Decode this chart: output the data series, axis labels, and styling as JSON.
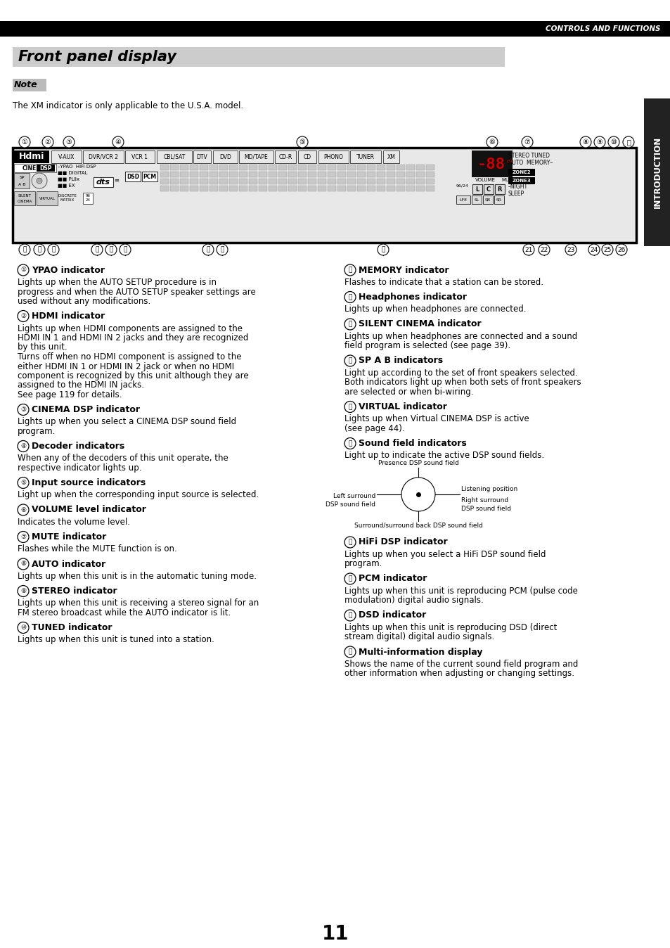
{
  "page_title": "Front panel display",
  "header_text": "CONTROLS AND FUNCTIONS",
  "side_tab_text": "INTRODUCTION",
  "note_label": "Note",
  "note_text": "The XM indicator is only applicable to the U.S.A. model.",
  "page_number": "11",
  "background_color": "#ffffff",
  "header_bg": "#000000",
  "title_bg": "#cccccc",
  "note_bg": "#bbbbbb",
  "side_tab_bg": "#222222",
  "section_items_left": [
    {
      "num": "①",
      "title": "YPAO indicator",
      "body": "Lights up when the AUTO SETUP procedure is in\nprogress and when the AUTO SETUP speaker settings are\nused without any modifications."
    },
    {
      "num": "②",
      "title": "HDMI indicator",
      "body": "Lights up when HDMI components are assigned to the\nHDMI IN 1 and HDMI IN 2 jacks and they are recognized\nby this unit.\nTurns off when no HDMI component is assigned to the\neither HDMI IN 1 or HDMI IN 2 jack or when no HDMI\ncomponent is recognized by this unit although they are\nassigned to the HDMI IN jacks.\nSee page 119 for details."
    },
    {
      "num": "③",
      "title": "CINEMA DSP indicator",
      "body": "Lights up when you select a CINEMA DSP sound field\nprogram."
    },
    {
      "num": "④",
      "title": "Decoder indicators",
      "body": "When any of the decoders of this unit operate, the\nrespective indicator lights up."
    },
    {
      "num": "⑤",
      "title": "Input source indicators",
      "body": "Light up when the corresponding input source is selected."
    },
    {
      "num": "⑥",
      "title": "VOLUME level indicator",
      "body": "Indicates the volume level."
    },
    {
      "num": "⑦",
      "title": "MUTE indicator",
      "body": "Flashes while the MUTE function is on."
    },
    {
      "num": "⑧",
      "title": "AUTO indicator",
      "body": "Lights up when this unit is in the automatic tuning mode."
    },
    {
      "num": "⑨",
      "title": "STEREO indicator",
      "body": "Lights up when this unit is receiving a stereo signal for an\nFM stereo broadcast while the AUTO indicator is lit."
    },
    {
      "num": "⑩",
      "title": "TUNED indicator",
      "body": "Lights up when this unit is tuned into a station."
    }
  ],
  "section_items_right": [
    {
      "num": "⑪",
      "title": "MEMORY indicator",
      "body": "Flashes to indicate that a station can be stored."
    },
    {
      "num": "⑫",
      "title": "Headphones indicator",
      "body": "Lights up when headphones are connected."
    },
    {
      "num": "⑬",
      "title": "SILENT CINEMA indicator",
      "body": "Lights up when headphones are connected and a sound\nfield program is selected (see page 39)."
    },
    {
      "num": "⑭",
      "title": "SP A B indicators",
      "body": "Light up according to the set of front speakers selected.\nBoth indicators light up when both sets of front speakers\nare selected or when bi-wiring."
    },
    {
      "num": "⑮",
      "title": "VIRTUAL indicator",
      "body": "Lights up when Virtual CINEMA DSP is active\n(see page 44)."
    },
    {
      "num": "⑯",
      "title": "Sound field indicators",
      "body": "Light up to indicate the active DSP sound fields."
    },
    {
      "num": "⑰",
      "title": "HiFi DSP indicator",
      "body": "Lights up when you select a HiFi DSP sound field\nprogram."
    },
    {
      "num": "⑱",
      "title": "PCM indicator",
      "body": "Lights up when this unit is reproducing PCM (pulse code\nmodulation) digital audio signals."
    },
    {
      "num": "⑲",
      "title": "DSD indicator",
      "body": "Lights up when this unit is reproducing DSD (direct\nstream digital) digital audio signals."
    },
    {
      "num": "⑳",
      "title": "Multi-information display",
      "body": "Shows the name of the current sound field program and\nother information when adjusting or changing settings."
    }
  ]
}
